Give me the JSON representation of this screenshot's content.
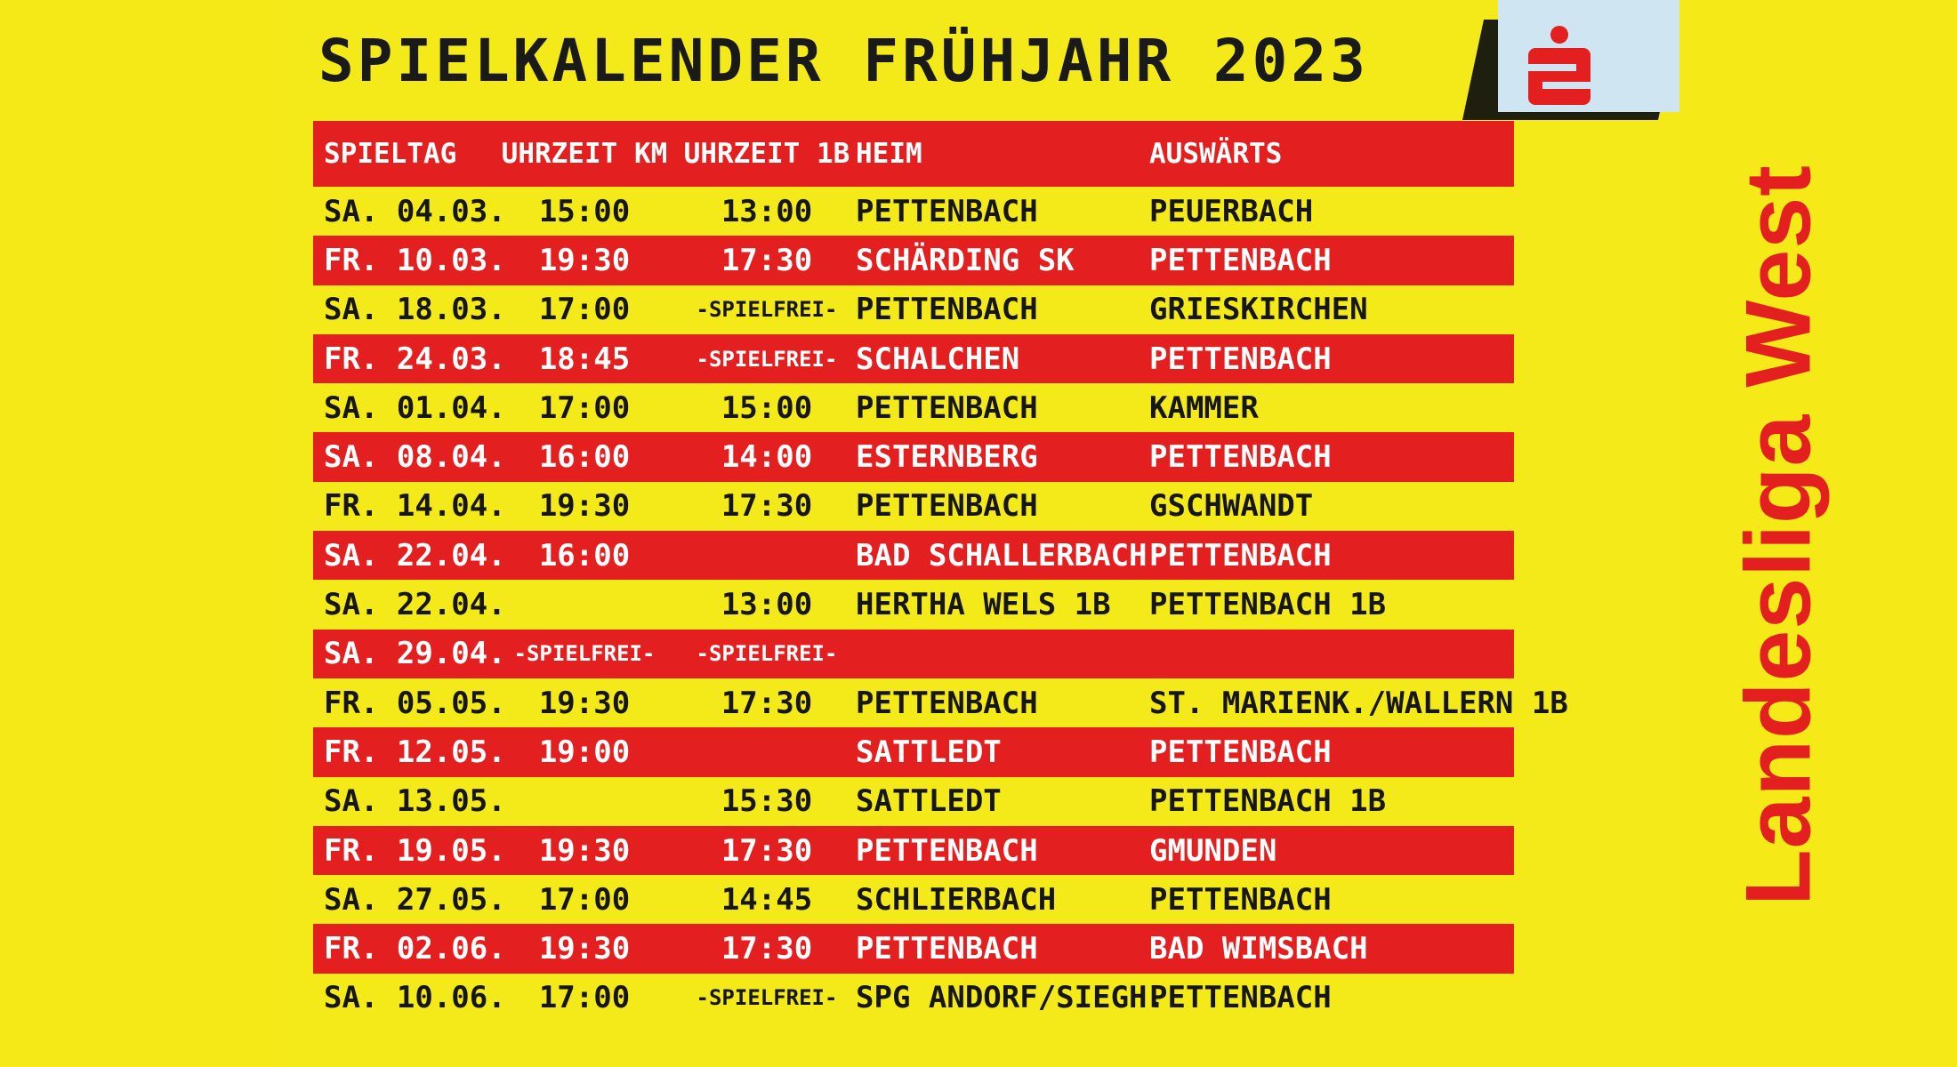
{
  "title": "SPIELKALENDER FRÜHJAHR 2023",
  "league": "Landesliga West",
  "logo_icon": "sparkasse-s-icon",
  "colors": {
    "background": "#f4ea1a",
    "accent": "#e31f1f",
    "text": "#161616",
    "logo_bg": "#cfe6f2"
  },
  "headers": [
    "SPIELTAG",
    "UHRZEIT KM",
    "UHRZEIT 1B",
    "HEIM",
    "AUSWÄRTS"
  ],
  "rows": [
    [
      "SA. 04.03.",
      "15:00",
      "13:00",
      "PETTENBACH",
      "PEUERBACH"
    ],
    [
      "FR. 10.03.",
      "19:30",
      "17:30",
      "SCHÄRDING SK",
      "PETTENBACH"
    ],
    [
      "SA. 18.03.",
      "17:00",
      "-SPIELFREI-",
      "PETTENBACH",
      "GRIESKIRCHEN"
    ],
    [
      "FR. 24.03.",
      "18:45",
      "-SPIELFREI-",
      "SCHALCHEN",
      "PETTENBACH"
    ],
    [
      "SA. 01.04.",
      "17:00",
      "15:00",
      "PETTENBACH",
      "KAMMER"
    ],
    [
      "SA. 08.04.",
      "16:00",
      "14:00",
      "ESTERNBERG",
      "PETTENBACH"
    ],
    [
      "FR. 14.04.",
      "19:30",
      "17:30",
      "PETTENBACH",
      "GSCHWANDT"
    ],
    [
      "SA. 22.04.",
      "16:00",
      "",
      "BAD SCHALLERBACH",
      "PETTENBACH"
    ],
    [
      "SA. 22.04.",
      "",
      "13:00",
      "HERTHA WELS 1B",
      "PETTENBACH 1B"
    ],
    [
      "SA. 29.04.",
      "-SPIELFREI-",
      "-SPIELFREI-",
      "",
      ""
    ],
    [
      "FR. 05.05.",
      "19:30",
      "17:30",
      "PETTENBACH",
      "ST. MARIENK./WALLERN 1B"
    ],
    [
      "FR. 12.05.",
      "19:00",
      "",
      "SATTLEDT",
      "PETTENBACH"
    ],
    [
      "SA. 13.05.",
      "",
      "15:30",
      "SATTLEDT",
      "PETTENBACH 1B"
    ],
    [
      "FR. 19.05.",
      "19:30",
      "17:30",
      "PETTENBACH",
      "GMUNDEN"
    ],
    [
      "SA. 27.05.",
      "17:00",
      "14:45",
      "SCHLIERBACH",
      "PETTENBACH"
    ],
    [
      "FR. 02.06.",
      "19:30",
      "17:30",
      "PETTENBACH",
      "BAD WIMSBACH"
    ],
    [
      "SA. 10.06.",
      "17:00",
      "-SPIELFREI-",
      "SPG ANDORF/SIEGH.",
      "PETTENBACH"
    ]
  ]
}
